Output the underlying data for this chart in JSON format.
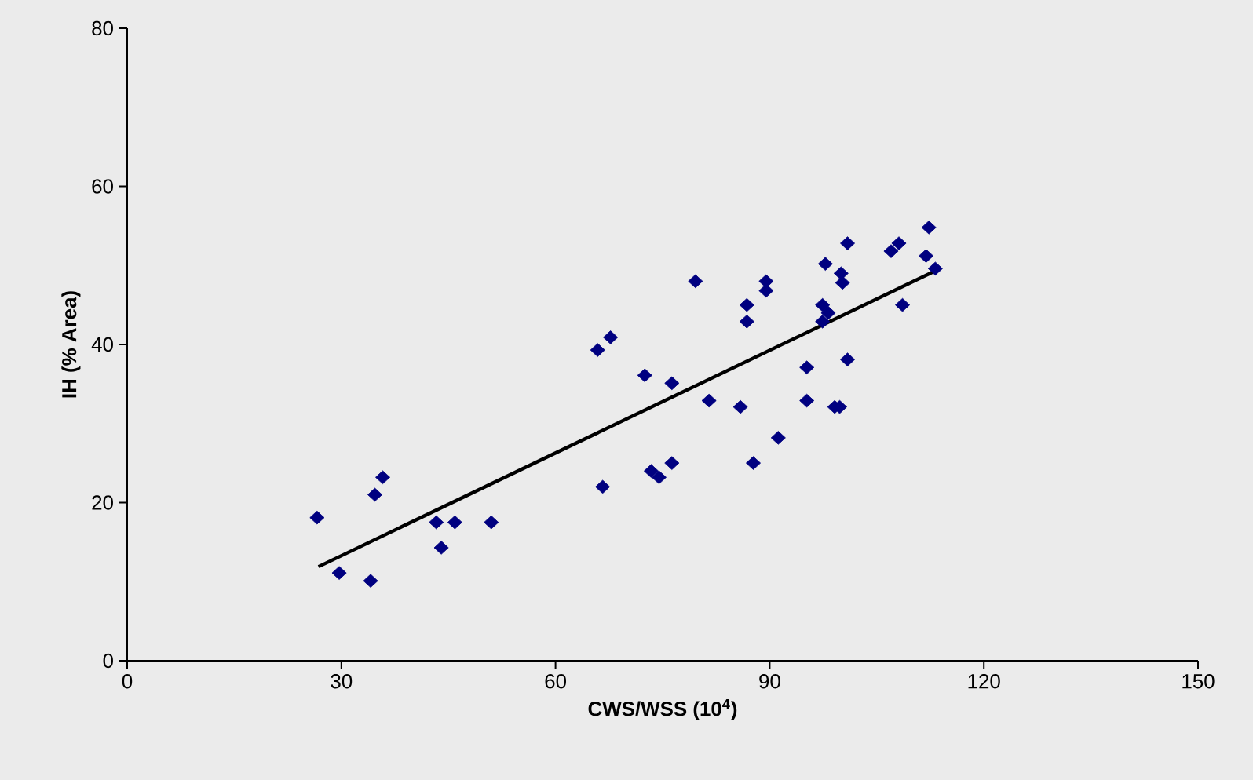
{
  "chart_data": {
    "type": "scatter",
    "xlabel": "CWS/WSS (10$^{4}$)",
    "ylabel": "IH (% Area)",
    "xlim": [
      0,
      150
    ],
    "ylim": [
      0,
      80
    ],
    "xticks": [
      0,
      30,
      60,
      90,
      120,
      150
    ],
    "yticks": [
      0,
      20,
      40,
      60,
      80
    ],
    "grid": false,
    "series": [
      {
        "color": "#000080",
        "marker": "diamond",
        "x": [
          26.6,
          29.7,
          34.1,
          34.7,
          35.8,
          43.3,
          44.0,
          45.9,
          51.0,
          65.9,
          67.7,
          66.6,
          72.5,
          73.4,
          74.5,
          76.3,
          76.3,
          79.6,
          81.5,
          85.9,
          86.8,
          86.8,
          87.7,
          89.5,
          89.5,
          91.2,
          95.2,
          95.2,
          97.4,
          97.4,
          97.8,
          98.2,
          99.1,
          99.8,
          100.0,
          100.2,
          100.9,
          100.9,
          107.0,
          108.1,
          108.6,
          111.9,
          112.3,
          113.2
        ],
        "values": [
          18.1,
          11.1,
          10.1,
          21.0,
          23.2,
          17.5,
          14.3,
          17.5,
          17.5,
          39.3,
          40.9,
          22.0,
          36.1,
          24.0,
          23.2,
          35.1,
          25.0,
          48.0,
          32.9,
          32.1,
          45.0,
          42.9,
          25.0,
          46.8,
          48.0,
          28.2,
          37.1,
          32.9,
          45.0,
          42.9,
          50.2,
          44.0,
          32.1,
          32.1,
          49.0,
          47.8,
          38.1,
          52.8,
          51.8,
          52.8,
          45.0,
          51.2,
          54.8,
          49.6
        ]
      },
      {
        "type": "line",
        "color": "#000000",
        "marker": "none",
        "line_style": "solid",
        "x": [
          26.8,
          113.4
        ],
        "values": [
          11.9,
          49.4
        ]
      }
    ]
  }
}
